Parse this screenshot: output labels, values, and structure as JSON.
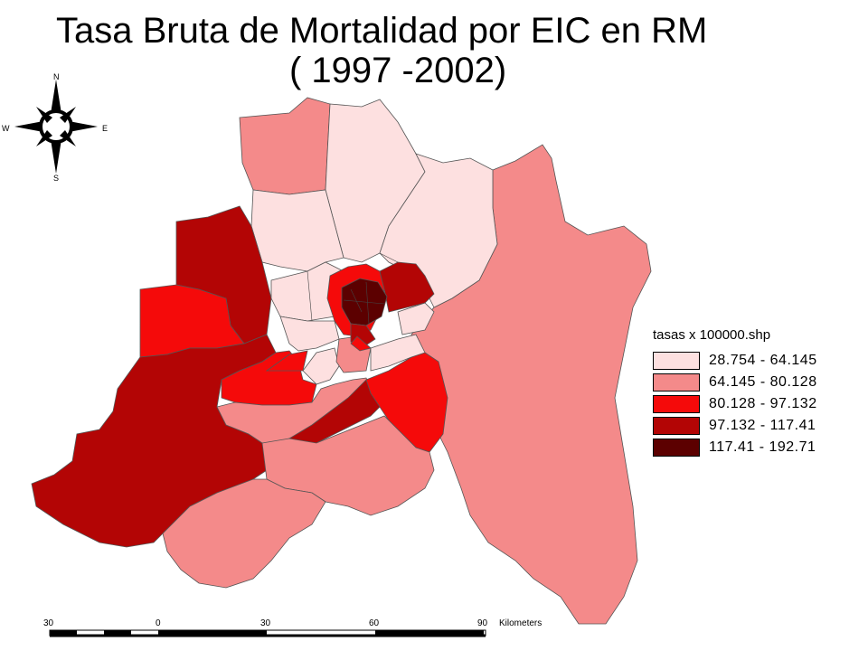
{
  "title_line1": "Tasa Bruta de Mortalidad por EIC en RM",
  "title_line2": "( 1997 -2002)",
  "compass": {
    "n": "N",
    "s": "S",
    "e": "E",
    "w": "W"
  },
  "legend": {
    "title": "tasas x 100000.shp",
    "classes": [
      {
        "label": "28.754 - 64.145",
        "color": "#fde0e0"
      },
      {
        "label": "64.145 - 80.128",
        "color": "#f48a8a"
      },
      {
        "label": "80.128 - 97.132",
        "color": "#f50a0a"
      },
      {
        "label": "97.132 - 117.41",
        "color": "#b30505"
      },
      {
        "label": "117.41 - 192.71",
        "color": "#5c0000"
      }
    ]
  },
  "scale_bar": {
    "ticks": [
      "30",
      "0",
      "30",
      "60",
      "90"
    ],
    "unit": "Kilometers"
  }
}
